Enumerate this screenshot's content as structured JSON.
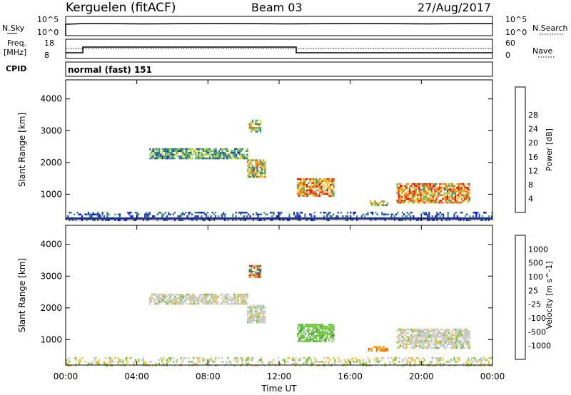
{
  "header": {
    "station": "Kerguelen (fitACF)",
    "beam": "Beam 03",
    "date": "27/Aug/2017"
  },
  "top_panels": {
    "nsky_label": "N.Sky",
    "nsearch_label": "N.Search",
    "nsky_ticks": [
      "10^5",
      "10^0"
    ],
    "nsearch_ticks": [
      "10^5",
      "10^0"
    ],
    "freq_label_1": "Freq.",
    "freq_label_2": "[MHz]",
    "freq_ticks": [
      "18",
      "8"
    ],
    "nave_label": "Nave",
    "nave_ticks": [
      "60",
      "0"
    ],
    "cpid_label": "CPID",
    "cpid_text": "normal (fast) 151"
  },
  "chart_data": [
    {
      "type": "heatmap",
      "name": "power-panel",
      "ylabel": "Slant Range [km]",
      "xlabel": "",
      "x_ticks": [
        "00:00",
        "04:00",
        "08:00",
        "12:00",
        "16:00",
        "20:00",
        "00:00"
      ],
      "x_range_hours": [
        0,
        24
      ],
      "y_ticks": [
        1000,
        2000,
        3000,
        4000
      ],
      "ylim": [
        200,
        4600
      ],
      "colorbar": {
        "label": "Power [dB]",
        "ticks": [
          "4",
          "8",
          "12",
          "16",
          "20",
          "24",
          "28"
        ],
        "colors": [
          "#0000ee",
          "#1f3aa8",
          "#2f6e8a",
          "#3e9d6e",
          "#7fc84a",
          "#e6d22a",
          "#f39a1c",
          "#ef5a18",
          "#e01010"
        ]
      },
      "echo_regions": [
        {
          "t0": 4.7,
          "t1": 10.2,
          "r0": 2100,
          "r1": 2450,
          "level": "low-mid"
        },
        {
          "t0": 10.2,
          "t1": 11.2,
          "r0": 1550,
          "r1": 2100,
          "level": "mid"
        },
        {
          "t0": 10.3,
          "t1": 11.0,
          "r0": 2950,
          "r1": 3350,
          "level": "mid"
        },
        {
          "t0": 13.0,
          "t1": 15.1,
          "r0": 950,
          "r1": 1500,
          "level": "high"
        },
        {
          "t0": 17.0,
          "t1": 18.1,
          "r0": 650,
          "r1": 800,
          "level": "mid"
        },
        {
          "t0": 18.6,
          "t1": 22.7,
          "r0": 750,
          "r1": 1350,
          "level": "high"
        },
        {
          "t0": 0.0,
          "t1": 24.0,
          "r0": 200,
          "r1": 450,
          "level": "low"
        }
      ]
    },
    {
      "type": "heatmap",
      "name": "velocity-panel",
      "ylabel": "Slant Range [km]",
      "xlabel": "Time UT",
      "x_ticks": [
        "00:00",
        "04:00",
        "08:00",
        "12:00",
        "16:00",
        "20:00",
        "00:00"
      ],
      "x_range_hours": [
        0,
        24
      ],
      "y_ticks": [
        1000,
        2000,
        3000,
        4000
      ],
      "ylim": [
        200,
        4600
      ],
      "colorbar": {
        "label": "Velocity [m s^-1]",
        "ticks": [
          "1000",
          "500",
          "100",
          "25",
          "-25",
          "-100",
          "-500",
          "-1000"
        ],
        "colors": [
          "#1b3fb5",
          "#2f5ea8",
          "#3e8f5a",
          "#6cc43a",
          "#c8c8c8",
          "#f0c030",
          "#f08a10",
          "#ee5a10",
          "#e01010"
        ]
      },
      "echo_regions": [
        {
          "t0": 4.7,
          "t1": 10.2,
          "r0": 2100,
          "r1": 2450,
          "level": "ground"
        },
        {
          "t0": 10.2,
          "t1": 11.2,
          "r0": 1550,
          "r1": 2100,
          "level": "ground"
        },
        {
          "t0": 10.3,
          "t1": 11.0,
          "r0": 2950,
          "r1": 3350,
          "level": "mixed"
        },
        {
          "t0": 13.0,
          "t1": 15.1,
          "r0": 950,
          "r1": 1500,
          "level": "positive"
        },
        {
          "t0": 17.0,
          "t1": 18.1,
          "r0": 650,
          "r1": 800,
          "level": "negative"
        },
        {
          "t0": 18.6,
          "t1": 22.7,
          "r0": 750,
          "r1": 1350,
          "level": "ground"
        },
        {
          "t0": 0.0,
          "t1": 24.0,
          "r0": 200,
          "r1": 450,
          "level": "ground-low"
        }
      ]
    }
  ]
}
